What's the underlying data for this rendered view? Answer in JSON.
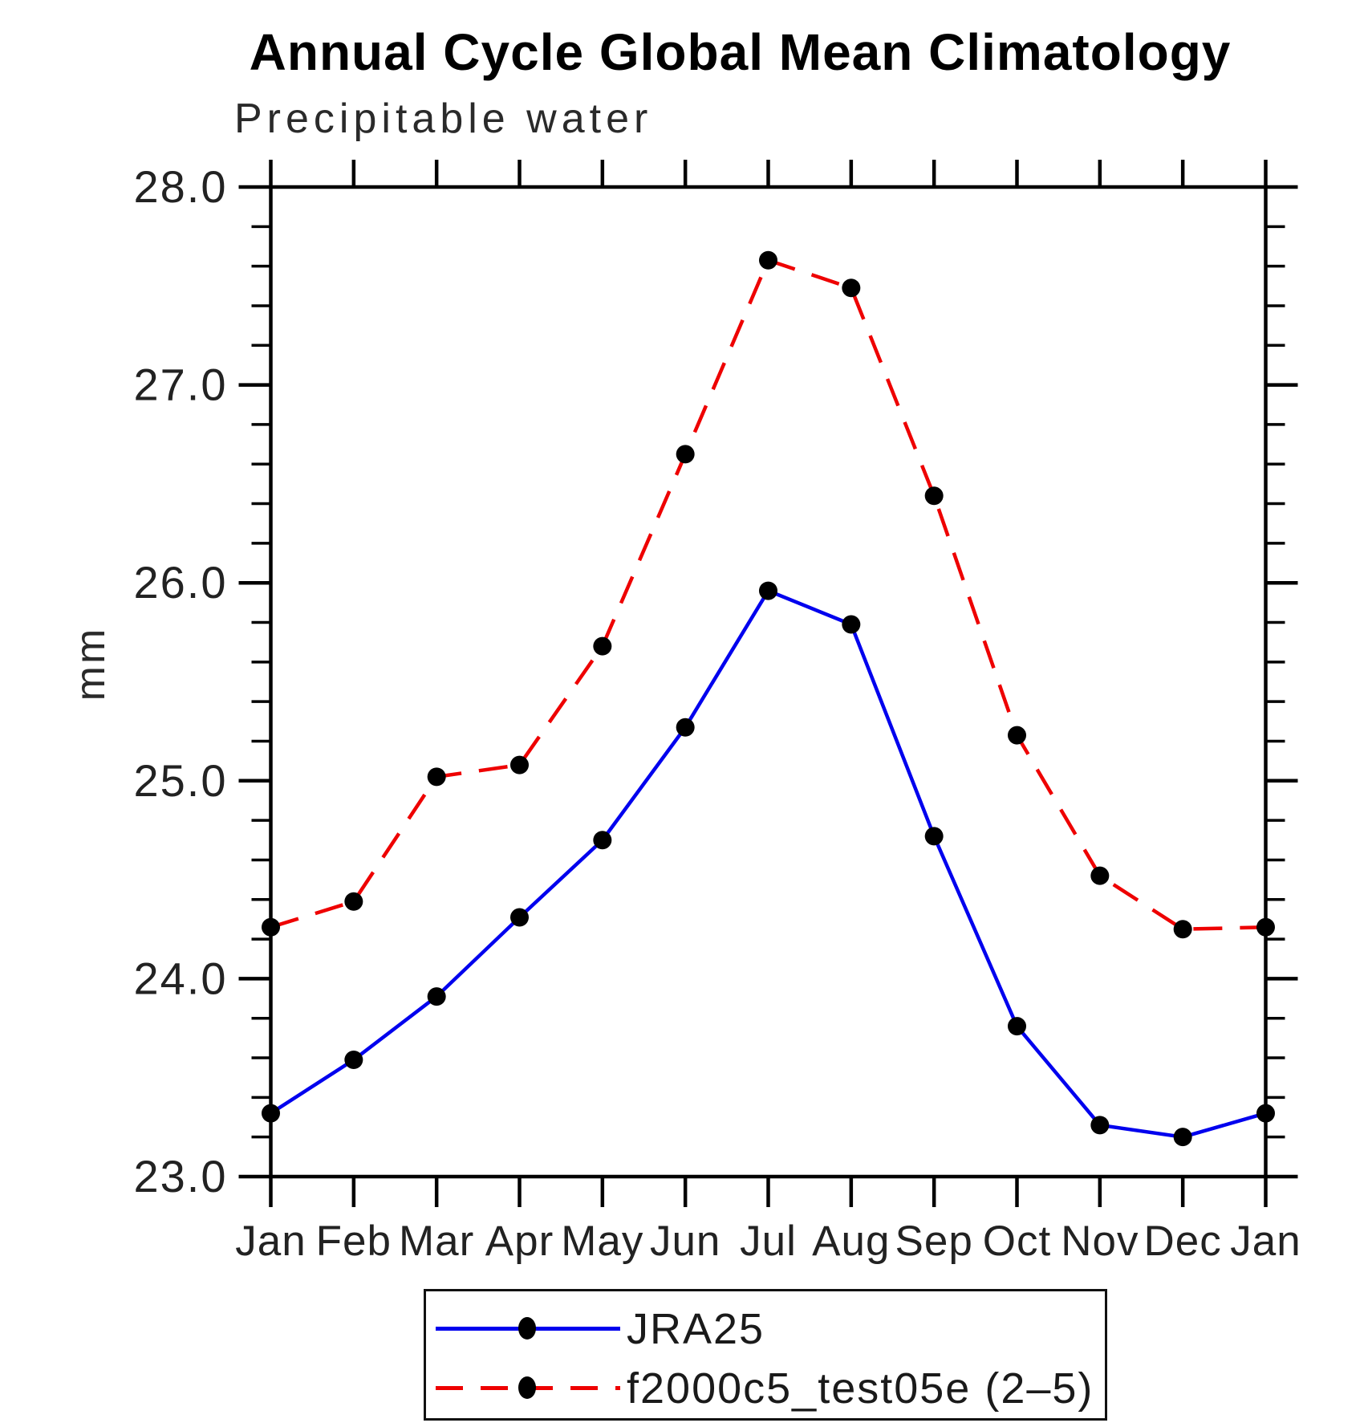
{
  "title": "Annual Cycle Global Mean Climatology",
  "subtitle": "Precipitable water",
  "y_axis_title": "mm",
  "chart_data": {
    "type": "line",
    "categories": [
      "Jan",
      "Feb",
      "Mar",
      "Apr",
      "May",
      "Jun",
      "Jul",
      "Aug",
      "Sep",
      "Oct",
      "Nov",
      "Dec",
      "Jan"
    ],
    "series": [
      {
        "name": "JRA25",
        "color": "#0000ee",
        "style": "solid",
        "values": [
          23.32,
          23.59,
          23.91,
          24.31,
          24.7,
          25.27,
          25.96,
          25.79,
          24.72,
          23.76,
          23.26,
          23.2,
          23.32
        ]
      },
      {
        "name": "f2000c5_test05e (2–5)",
        "color": "#ee0000",
        "style": "dashed",
        "values": [
          24.26,
          24.39,
          25.02,
          25.08,
          25.68,
          26.65,
          27.63,
          27.49,
          26.44,
          25.23,
          24.52,
          24.25,
          24.26
        ]
      }
    ],
    "ylim": [
      23.0,
      28.0
    ],
    "y_ticks": [
      23.0,
      24.0,
      25.0,
      26.0,
      27.0,
      28.0
    ],
    "y_tick_labels": [
      "23.0",
      "24.0",
      "25.0",
      "26.0",
      "27.0",
      "28.0"
    ],
    "y_minor_step": 0.2,
    "marker_color": "#000000",
    "axis_color": "#000000",
    "grid": false,
    "legend_position": "bottom"
  }
}
